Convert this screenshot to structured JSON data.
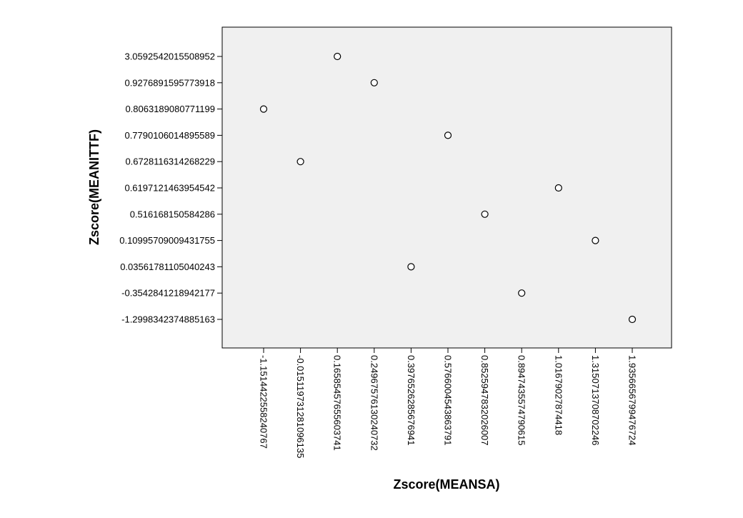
{
  "chart_data": {
    "type": "scatter",
    "title": "",
    "xlabel": "Zscore(MEANSA)",
    "ylabel": "Zscore(MEANITTF)",
    "x_categories": [
      "-1.1514422558240767",
      "-0.0151197312810961​35",
      "0.1658545765560374​1",
      "0.2496757613024073​2",
      "0.3976526285676941",
      "0.5766004543863791",
      "0.8525947832026007",
      "0.8947435574790615",
      "1.0167902787441​8",
      "1.3150713708702246",
      "1.9356656799476724"
    ],
    "y_categories": [
      "-1.2998342374885163",
      "-0.3542841218942177",
      "0.03561781105040243",
      "0.10995709009431755",
      "0.516168150584286",
      "0.6197121463954542",
      "0.6728116314268229",
      "0.7790106014895589",
      "0.8063189080771199",
      "0.9276891595773918",
      "3.0592542015508952"
    ],
    "points": [
      {
        "x": "-1.1514422558240767",
        "y": "0.8063189080771199"
      },
      {
        "x": "-0.0151197312810961​35",
        "y": "0.6728116314268229"
      },
      {
        "x": "0.1658545765560374​1",
        "y": "3.0592542015508952"
      },
      {
        "x": "0.2496757613024073​2",
        "y": "0.9276891595773918"
      },
      {
        "x": "0.3976526285676941",
        "y": "0.03561781105040243"
      },
      {
        "x": "0.5766004543863791",
        "y": "0.7790106014895589"
      },
      {
        "x": "0.8525947832026007",
        "y": "0.516168150584286"
      },
      {
        "x": "0.8947435574790615",
        "y": "-0.3542841218942177"
      },
      {
        "x": "1.0167902787441​8",
        "y": "0.6197121463954542"
      },
      {
        "x": "1.3150713708702246",
        "y": "0.10995709009431755"
      },
      {
        "x": "1.9356656799476724",
        "y": "-1.2998342374885163"
      }
    ],
    "grid": false,
    "legend": "none",
    "colors": {
      "plot_background": "#f0f0f0",
      "frame": "#000000",
      "marker_stroke": "#000000",
      "marker_fill": "#ffffff"
    }
  }
}
